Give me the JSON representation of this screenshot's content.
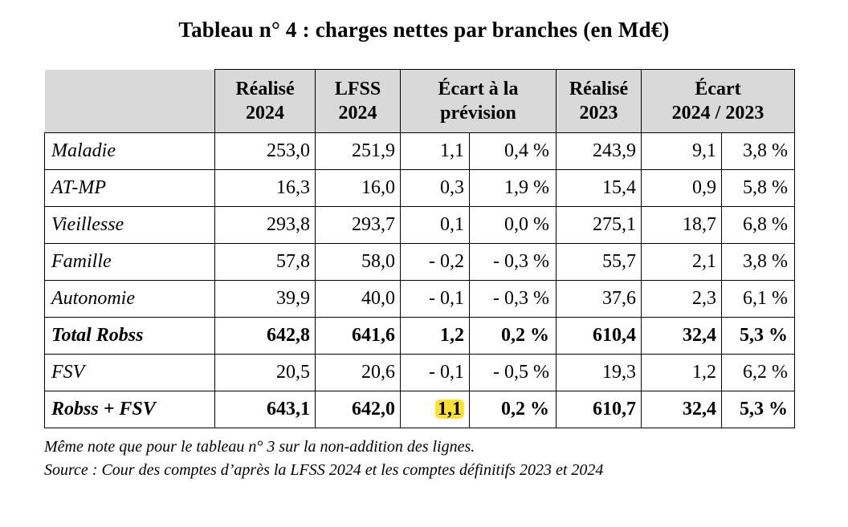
{
  "title": "Tableau n° 4 : charges nettes par branches (en Md€)",
  "headers": {
    "realise_2024": [
      "Réalisé",
      "2024"
    ],
    "lfss_2024": [
      "LFSS",
      "2024"
    ],
    "ecart_prevision": [
      "Écart à la",
      "prévision"
    ],
    "realise_2023": [
      "Réalisé",
      "2023"
    ],
    "ecart_2024_2023": [
      "Écart",
      "2024 / 2023"
    ]
  },
  "rows": [
    {
      "label": "Maladie",
      "realise_2024": "253,0",
      "lfss_2024": "251,9",
      "ecart_prev": "1,1",
      "ecart_prev_pct": "0,4 %",
      "realise_2023": "243,9",
      "ecart_n": "9,1",
      "ecart_n_pct": "3,8 %",
      "bold": false
    },
    {
      "label": "AT-MP",
      "realise_2024": "16,3",
      "lfss_2024": "16,0",
      "ecart_prev": "0,3",
      "ecart_prev_pct": "1,9 %",
      "realise_2023": "15,4",
      "ecart_n": "0,9",
      "ecart_n_pct": "5,8 %",
      "bold": false
    },
    {
      "label": "Vieillesse",
      "realise_2024": "293,8",
      "lfss_2024": "293,7",
      "ecart_prev": "0,1",
      "ecart_prev_pct": "0,0 %",
      "realise_2023": "275,1",
      "ecart_n": "18,7",
      "ecart_n_pct": "6,8 %",
      "bold": false
    },
    {
      "label": "Famille",
      "realise_2024": "57,8",
      "lfss_2024": "58,0",
      "ecart_prev": "- 0,2",
      "ecart_prev_pct": "- 0,3 %",
      "realise_2023": "55,7",
      "ecart_n": "2,1",
      "ecart_n_pct": "3,8 %",
      "bold": false
    },
    {
      "label": "Autonomie",
      "realise_2024": "39,9",
      "lfss_2024": "40,0",
      "ecart_prev": "- 0,1",
      "ecart_prev_pct": "- 0,3 %",
      "realise_2023": "37,6",
      "ecart_n": "2,3",
      "ecart_n_pct": "6,1 %",
      "bold": false
    },
    {
      "label": "Total Robss",
      "realise_2024": "642,8",
      "lfss_2024": "641,6",
      "ecart_prev": "1,2",
      "ecart_prev_pct": "0,2 %",
      "realise_2023": "610,4",
      "ecart_n": "32,4",
      "ecart_n_pct": "5,3 %",
      "bold": true
    },
    {
      "label": "FSV",
      "realise_2024": "20,5",
      "lfss_2024": "20,6",
      "ecart_prev": "- 0,1",
      "ecart_prev_pct": "- 0,5 %",
      "realise_2023": "19,3",
      "ecart_n": "1,2",
      "ecart_n_pct": "6,2 %",
      "bold": false
    },
    {
      "label": "Robss + FSV",
      "realise_2024": "643,1",
      "lfss_2024": "642,0",
      "ecart_prev": "1,1",
      "ecart_prev_pct": "0,2 %",
      "realise_2023": "610,7",
      "ecart_n": "32,4",
      "ecart_n_pct": "5,3 %",
      "bold": true
    }
  ],
  "highlight_color": "#ffe033",
  "header_bg": "#d9d9d9",
  "notes": [
    "Même note que pour le tableau n° 3 sur la non-addition des lignes.",
    "Source : Cour des comptes d’après la LFSS 2024 et les comptes définitifs 2023 et 2024"
  ]
}
